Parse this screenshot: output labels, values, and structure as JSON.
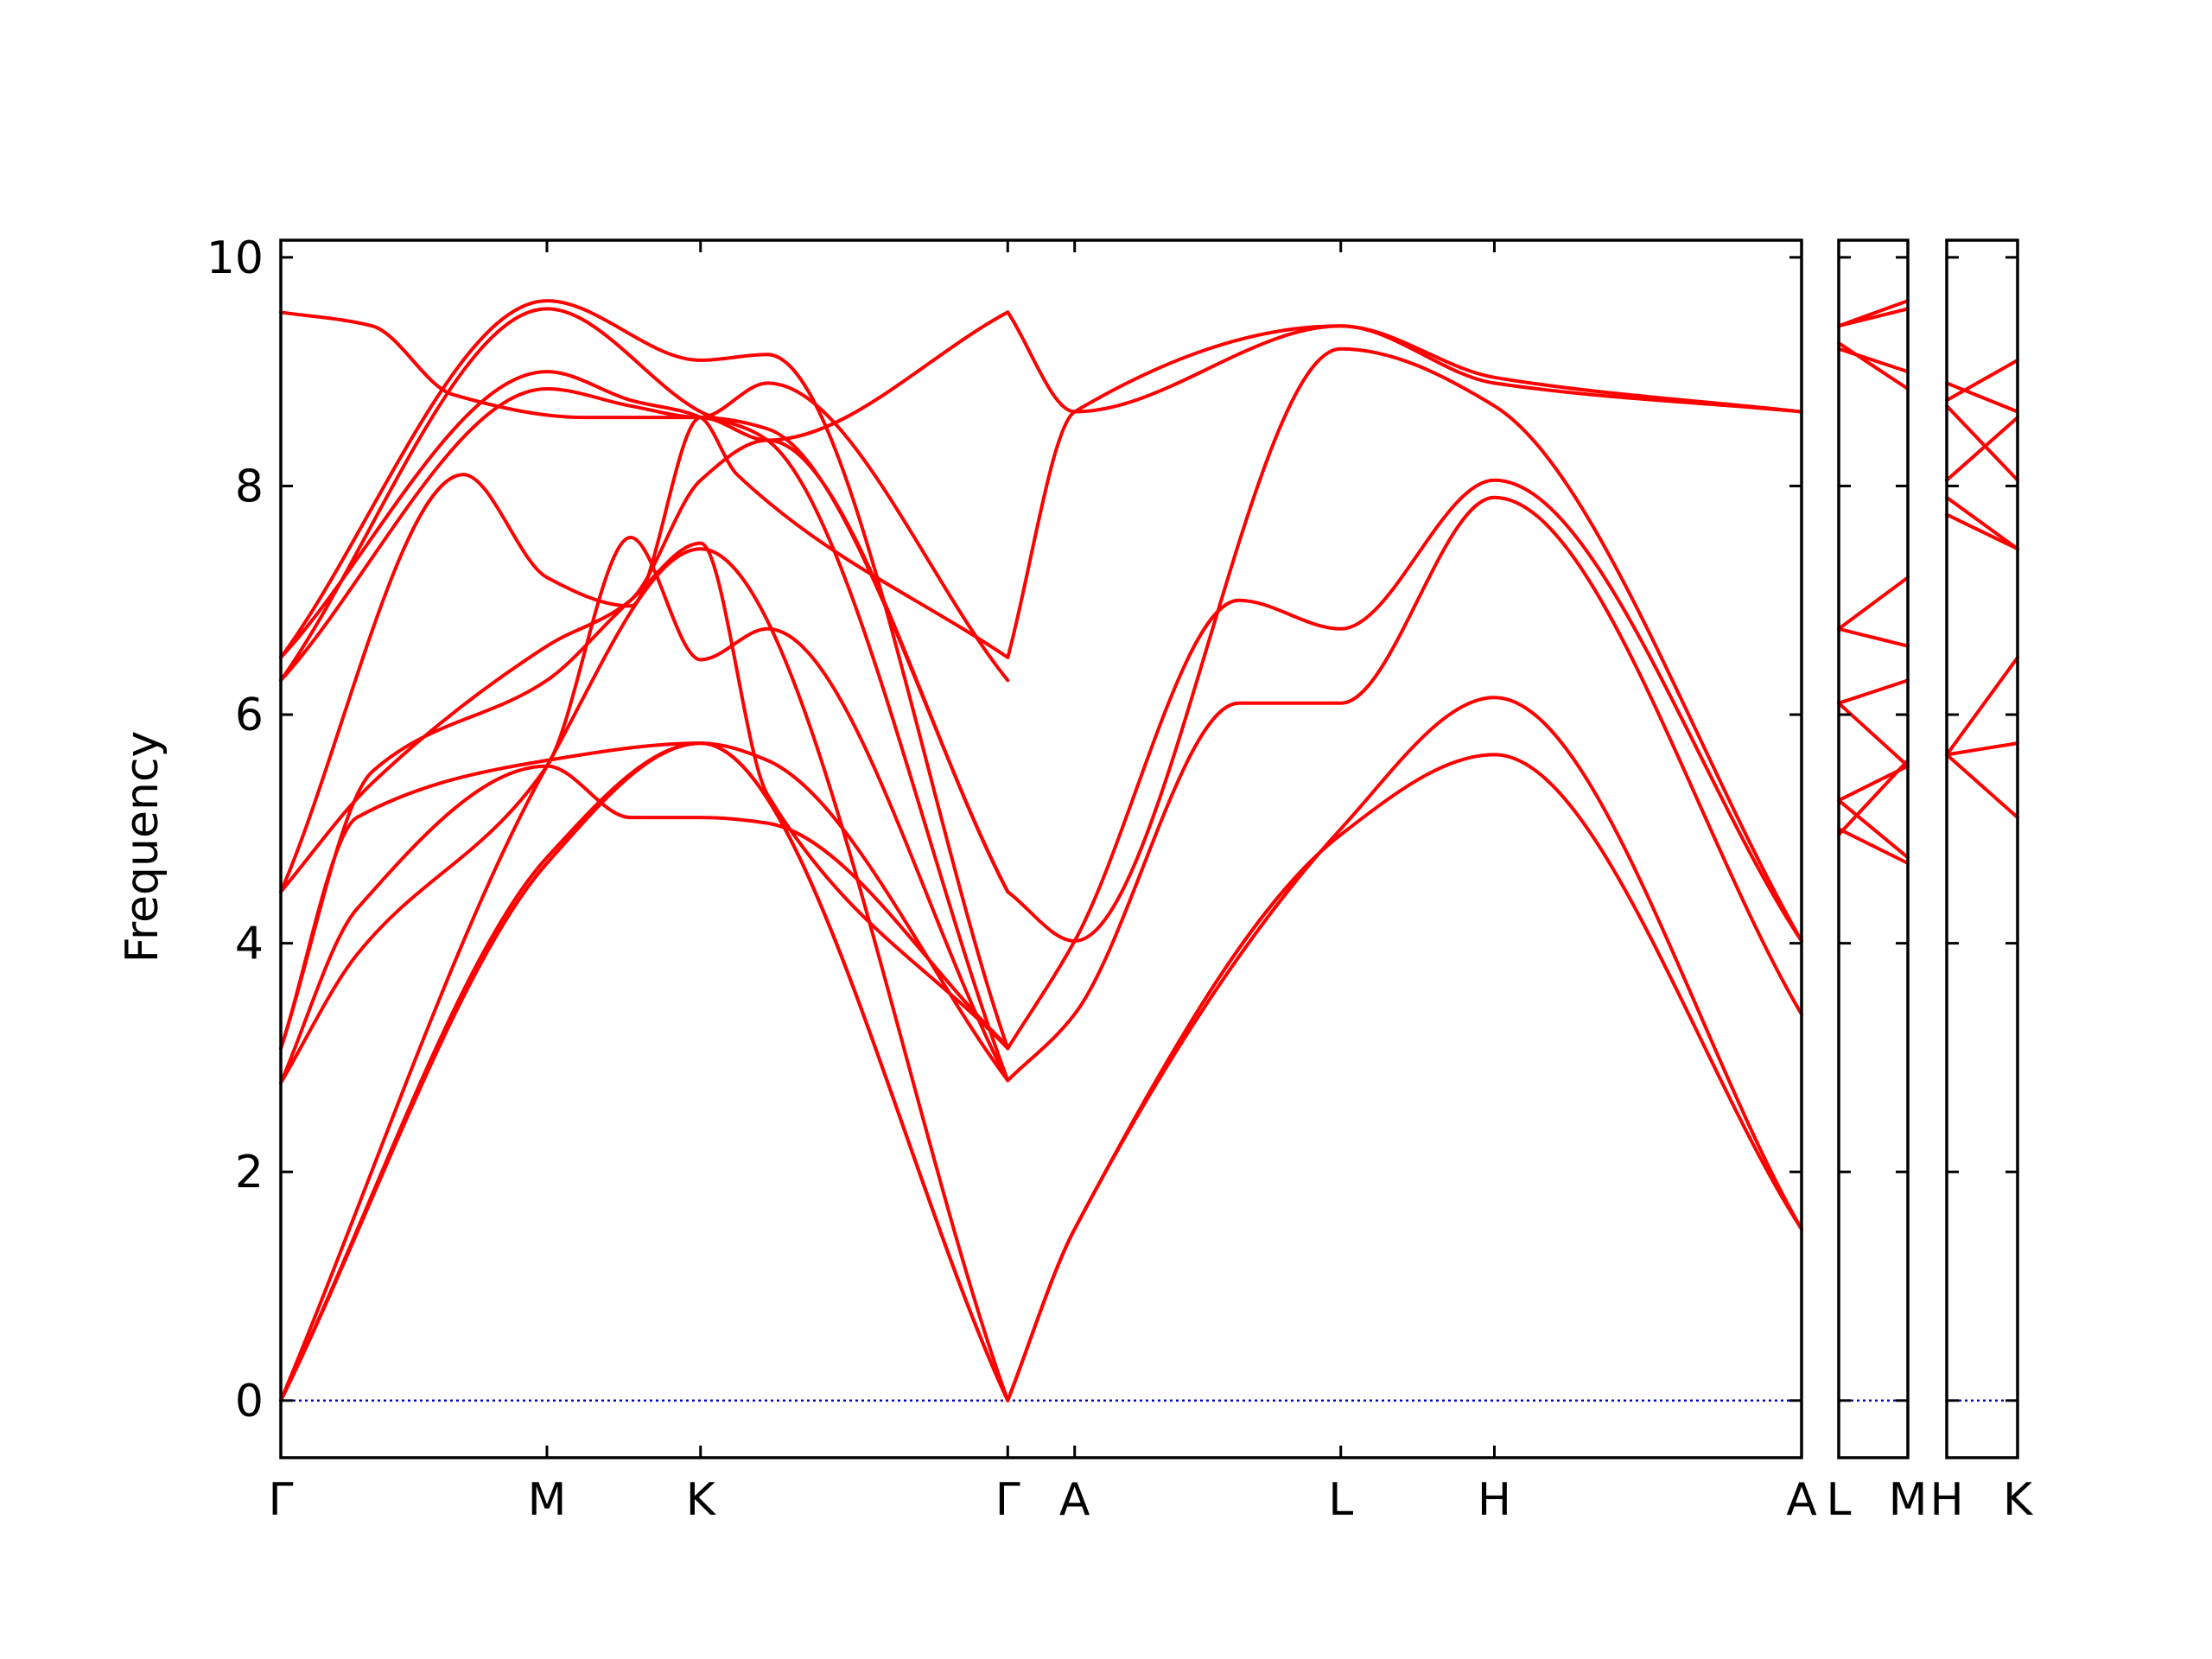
{
  "chart_data": {
    "type": "line",
    "ylabel": "Frequency",
    "ylim": [
      -0.5,
      10.15
    ],
    "yticks": [
      0,
      2,
      4,
      6,
      8,
      10
    ],
    "line_color": "#ff0000",
    "zero_line_color": "#0000cc",
    "panels": [
      {
        "xlim": [
          0,
          10
        ],
        "ticks": [
          {
            "x": 0,
            "label": "Γ"
          },
          {
            "x": 1.75,
            "label": "M"
          },
          {
            "x": 2.76,
            "label": "K"
          },
          {
            "x": 4.78,
            "label": "Γ"
          },
          {
            "x": 5.22,
            "label": "A"
          },
          {
            "x": 6.97,
            "label": "L"
          },
          {
            "x": 7.98,
            "label": "H"
          },
          {
            "x": 10,
            "label": "A"
          }
        ],
        "series": [
          {
            "x": [
              0,
              1.75,
              2.76,
              4.78
            ],
            "y": [
              0,
              4.75,
              5.75,
              0
            ]
          },
          {
            "x": [
              0,
              1.75,
              2.76,
              4.78
            ],
            "y": [
              0,
              4.7,
              5.75,
              0
            ]
          },
          {
            "x": [
              0,
              1.75,
              2.76,
              4.78
            ],
            "y": [
              0,
              5.55,
              7.45,
              0
            ]
          },
          {
            "x": [
              0,
              0.5,
              1.75,
              2.3,
              2.76,
              3.2,
              4.78
            ],
            "y": [
              2.78,
              4.3,
              5.55,
              5.1,
              5.1,
              5.05,
              3.1
            ]
          },
          {
            "x": [
              0,
              0.5,
              1.75,
              2.3,
              2.76,
              3.2,
              4.78
            ],
            "y": [
              2.78,
              3.9,
              5.55,
              7.55,
              6.48,
              6.75,
              2.8
            ]
          },
          {
            "x": [
              0,
              0.5,
              1.75,
              2.76,
              3.2,
              4.78
            ],
            "y": [
              3.08,
              5.1,
              5.6,
              5.75,
              5.6,
              2.8
            ]
          },
          {
            "x": [
              0,
              0.6,
              1.75,
              2.3,
              2.76,
              3.2,
              4.78
            ],
            "y": [
              3.08,
              5.5,
              6.3,
              7.0,
              7.5,
              5.3,
              3.08
            ]
          },
          {
            "x": [
              0,
              0.6,
              1.75,
              2.3,
              2.76,
              3.2,
              4.78
            ],
            "y": [
              4.45,
              5.4,
              6.6,
              7.0,
              8.05,
              8.4,
              4.45
            ]
          },
          {
            "x": [
              0,
              1.2,
              1.75,
              2.3,
              2.76,
              3.2,
              4.78
            ],
            "y": [
              4.45,
              8.1,
              7.2,
              6.95,
              8.6,
              8.5,
              4.45
            ]
          },
          {
            "x": [
              0,
              1.75,
              2.3,
              2.76,
              3.2,
              4.78
            ],
            "y": [
              6.3,
              8.85,
              8.7,
              8.6,
              8.9,
              6.3
            ]
          },
          {
            "x": [
              0,
              1.75,
              2.3,
              2.76,
              3.0,
              4.78
            ],
            "y": [
              6.5,
              9.0,
              8.75,
              8.6,
              8.1,
              6.5
            ]
          },
          {
            "x": [
              0,
              1.75,
              2.76,
              3.2,
              4.78
            ],
            "y": [
              6.3,
              9.55,
              8.65,
              8.4,
              2.8
            ]
          },
          {
            "x": [
              0,
              1.75,
              2.76,
              3.2,
              4.78
            ],
            "y": [
              6.5,
              9.62,
              9.1,
              9.15,
              3.08
            ]
          },
          {
            "x": [
              0,
              0.6,
              1.13,
              2.0,
              2.76,
              3.2,
              4.78
            ],
            "y": [
              9.52,
              9.4,
              8.8,
              8.6,
              8.6,
              8.4,
              9.52
            ]
          },
          {
            "x": [
              4.78,
              5.22,
              6.97,
              7.98,
              10
            ],
            "y": [
              0,
              1.5,
              4.95,
              5.65,
              1.5
            ]
          },
          {
            "x": [
              4.78,
              5.22,
              6.97,
              7.98,
              10
            ],
            "y": [
              0,
              1.5,
              5.0,
              6.15,
              1.5
            ]
          },
          {
            "x": [
              4.78,
              5.22,
              6.3,
              6.97,
              7.98,
              10
            ],
            "y": [
              2.8,
              3.38,
              6.1,
              6.1,
              7.9,
              3.38
            ]
          },
          {
            "x": [
              4.78,
              5.22,
              6.3,
              6.97,
              7.98,
              10
            ],
            "y": [
              3.08,
              4.02,
              7.0,
              6.75,
              8.05,
              4.02
            ]
          },
          {
            "x": [
              4.78,
              5.22,
              6.97,
              7.98,
              10
            ],
            "y": [
              4.45,
              4.02,
              9.2,
              8.7,
              4.02
            ]
          },
          {
            "x": [
              4.78,
              5.22,
              6.97,
              7.98,
              10
            ],
            "y": [
              6.5,
              8.65,
              9.4,
              8.9,
              8.65
            ]
          },
          {
            "x": [
              4.78,
              5.22,
              6.97,
              7.98,
              10
            ],
            "y": [
              9.52,
              8.65,
              9.4,
              8.95,
              8.65
            ]
          }
        ]
      },
      {
        "xlim": [
          0,
          1
        ],
        "ticks": [
          {
            "x": 0,
            "label": "L"
          },
          {
            "x": 1,
            "label": "M"
          }
        ],
        "series": [
          {
            "x": [
              0,
              1
            ],
            "y": [
              9.4,
              9.62
            ]
          },
          {
            "x": [
              0,
              1
            ],
            "y": [
              9.4,
              9.55
            ]
          },
          {
            "x": [
              0,
              1
            ],
            "y": [
              9.25,
              8.85
            ]
          },
          {
            "x": [
              0,
              1
            ],
            "y": [
              9.2,
              9.0
            ]
          },
          {
            "x": [
              0,
              1
            ],
            "y": [
              6.75,
              7.2
            ]
          },
          {
            "x": [
              0,
              1
            ],
            "y": [
              6.75,
              6.6
            ]
          },
          {
            "x": [
              0,
              1
            ],
            "y": [
              6.1,
              6.3
            ]
          },
          {
            "x": [
              0,
              1
            ],
            "y": [
              6.1,
              5.55
            ]
          },
          {
            "x": [
              0,
              1
            ],
            "y": [
              5.25,
              5.55
            ]
          },
          {
            "x": [
              0,
              1
            ],
            "y": [
              5.25,
              4.75
            ]
          },
          {
            "x": [
              0,
              1
            ],
            "y": [
              4.95,
              5.6
            ]
          },
          {
            "x": [
              0,
              1
            ],
            "y": [
              5.0,
              4.7
            ]
          }
        ]
      },
      {
        "xlim": [
          0,
          1
        ],
        "ticks": [
          {
            "x": 0,
            "label": "H"
          },
          {
            "x": 1,
            "label": "K"
          }
        ],
        "series": [
          {
            "x": [
              0,
              1
            ],
            "y": [
              8.9,
              8.65
            ]
          },
          {
            "x": [
              0,
              1
            ],
            "y": [
              8.75,
              9.1
            ]
          },
          {
            "x": [
              0,
              1
            ],
            "y": [
              8.7,
              8.05
            ]
          },
          {
            "x": [
              0,
              1
            ],
            "y": [
              8.05,
              8.6
            ]
          },
          {
            "x": [
              0,
              1
            ],
            "y": [
              7.9,
              7.45
            ]
          },
          {
            "x": [
              0,
              1
            ],
            "y": [
              7.75,
              7.45
            ]
          },
          {
            "x": [
              0,
              1
            ],
            "y": [
              5.65,
              6.5
            ]
          },
          {
            "x": [
              0,
              1
            ],
            "y": [
              5.65,
              5.75
            ]
          },
          {
            "x": [
              0,
              1
            ],
            "y": [
              5.65,
              5.1
            ]
          }
        ]
      }
    ]
  }
}
